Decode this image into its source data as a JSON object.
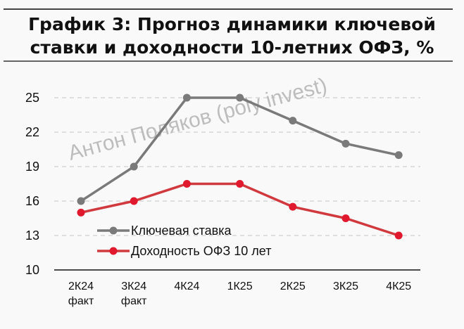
{
  "title": {
    "line1": "График 3: Прогноз динамики ключевой",
    "line2": "ставки и доходности 10-летних ОФЗ, %"
  },
  "watermark": "Антон Поляков (poly invest)",
  "colors": {
    "key_rate": "#7a7a7a",
    "ofz_yield": "#e0192f",
    "ofz_line": "#d03a3f",
    "grid": "#d0d0d0",
    "axis": "#111111",
    "background": "#f9f9f9"
  },
  "chart_data": {
    "type": "line",
    "title": "График 3: Прогноз динамики ключевой ставки и доходности 10-летних ОФЗ, %",
    "xlabel": "",
    "ylabel": "",
    "ylim": [
      10,
      25
    ],
    "yticks": [
      10,
      13,
      16,
      19,
      22,
      25
    ],
    "grid": true,
    "grid_style": "dashed horizontal",
    "legend_position": "inside lower-left",
    "categories": [
      "2К24 факт",
      "3К24 факт",
      "4К24",
      "1К25",
      "2К25",
      "3К25",
      "4К25"
    ],
    "category_lines": [
      [
        "2К24",
        "факт"
      ],
      [
        "3К24",
        "факт"
      ],
      [
        "4К24"
      ],
      [
        "1К25"
      ],
      [
        "2К25"
      ],
      [
        "3К25"
      ],
      [
        "4К25"
      ]
    ],
    "series": [
      {
        "name": "Ключевая ставка",
        "color": "#7a7a7a",
        "values": [
          16,
          19,
          25,
          25,
          23,
          21,
          20
        ]
      },
      {
        "name": "Доходность ОФЗ 10 лет",
        "color": "#e0192f",
        "values": [
          15,
          16,
          17.5,
          17.5,
          15.5,
          14.5,
          13
        ]
      }
    ],
    "annotations": [
      "Антон Поляков (poly invest)"
    ]
  }
}
